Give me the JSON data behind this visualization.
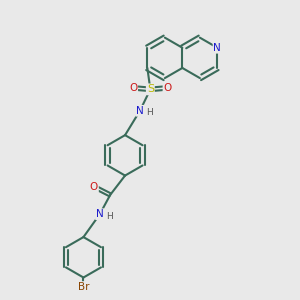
{
  "background_color": "#e9e9e9",
  "bond_color": "#3a6b5a",
  "bond_width": 1.5,
  "atom_colors": {
    "N": "#1a1acc",
    "O": "#cc1a1a",
    "S": "#b8b800",
    "Br": "#884400",
    "C": "#3a6b5a",
    "H": "#555555"
  },
  "figsize": [
    3.0,
    3.0
  ],
  "dpi": 100
}
